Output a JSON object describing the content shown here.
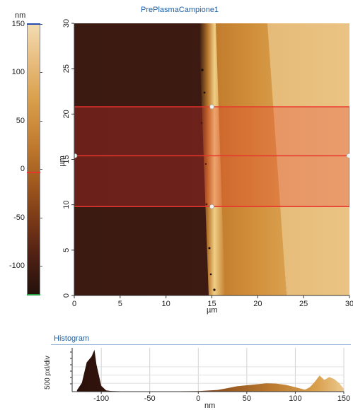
{
  "title": "PrePlasmaCampione1",
  "colorbar": {
    "unit": "nm",
    "ticks": [
      "150",
      "100",
      "50",
      "0",
      "-50",
      "-100"
    ],
    "tick_values": [
      150,
      100,
      50,
      0,
      -50,
      -100
    ],
    "range": [
      -130,
      150
    ],
    "marker_value": 0,
    "colors": {
      "top": "#f1d9ad",
      "upper": "#d99f4a",
      "mid": "#a55d1f",
      "low": "#5a2615",
      "bottom": "#24110b"
    }
  },
  "image": {
    "x_unit": "µm",
    "y_unit": "µm",
    "x_ticks": [
      "0",
      "5",
      "10",
      "15",
      "20",
      "25",
      "30"
    ],
    "y_ticks": [
      "30",
      "25",
      "20",
      "15",
      "10",
      "5",
      "0"
    ],
    "x_range": [
      0,
      30
    ],
    "y_range": [
      0,
      30
    ]
  },
  "selection": {
    "y_top": 20.8,
    "y_center": 15.4,
    "y_bottom": 9.8,
    "handle_x": 15,
    "color": "#e8352d"
  },
  "histogram": {
    "title": "Histogram",
    "ylabel": "500 pxl/div",
    "xlabel": "nm",
    "x_ticks": [
      "-100",
      "-50",
      "0",
      "50",
      "100",
      "150"
    ]
  },
  "chart_data": {
    "type": "area",
    "title": "Histogram",
    "xlabel": "nm",
    "ylabel": "500 pxl/div",
    "x": [
      -125,
      -120,
      -115,
      -110,
      -107,
      -105,
      -100,
      -95,
      -90,
      -80,
      -60,
      -40,
      -20,
      0,
      20,
      30,
      40,
      50,
      60,
      70,
      80,
      90,
      100,
      110,
      115,
      120,
      125,
      130,
      135,
      140,
      145,
      150
    ],
    "y": [
      30,
      180,
      600,
      720,
      860,
      560,
      120,
      25,
      12,
      8,
      6,
      6,
      8,
      10,
      35,
      70,
      110,
      130,
      150,
      170,
      165,
      140,
      90,
      40,
      90,
      200,
      330,
      240,
      300,
      260,
      180,
      60
    ],
    "xlim": [
      -130,
      150
    ],
    "grid": true
  }
}
